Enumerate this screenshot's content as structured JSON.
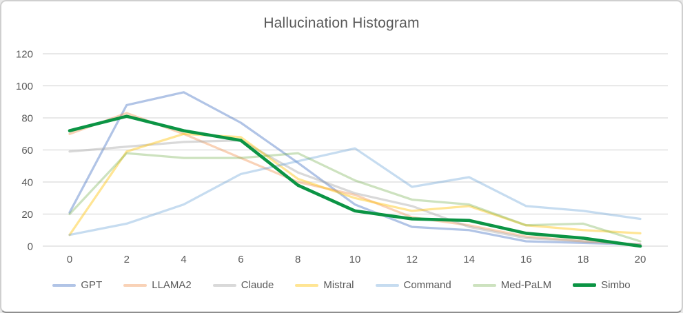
{
  "window": {
    "background": "#ffffff",
    "border_color": "#cfcfcf",
    "border_bottom_color": "#8f8f8f"
  },
  "chart_data": {
    "type": "line",
    "title": "Hallucination Histogram",
    "title_color": "#595959",
    "axis_text_color": "#595959",
    "gridline_color": "#d9d9d9",
    "grid": true,
    "legend_position": "bottom",
    "x": [
      0,
      2,
      4,
      6,
      8,
      10,
      12,
      14,
      16,
      18,
      20
    ],
    "xlabel": "",
    "ylabel": "",
    "ylim": [
      0,
      120
    ],
    "ytick_step": 20,
    "series": [
      {
        "name": "GPT",
        "color": "#4472C4",
        "opacity": 0.42,
        "width": 3.25,
        "values": [
          21,
          88,
          96,
          77,
          52,
          26,
          12,
          10,
          3,
          2,
          1
        ]
      },
      {
        "name": "LLAMA2",
        "color": "#ED7D31",
        "opacity": 0.35,
        "width": 3.25,
        "values": [
          70,
          83,
          70,
          55,
          40,
          32,
          18,
          13,
          6,
          3,
          1
        ]
      },
      {
        "name": "Claude",
        "color": "#A5A5A5",
        "opacity": 0.42,
        "width": 3.25,
        "values": [
          59,
          62,
          65,
          66,
          46,
          33,
          25,
          12,
          5,
          3,
          1
        ]
      },
      {
        "name": "Mistral",
        "color": "#FFC000",
        "opacity": 0.42,
        "width": 3.25,
        "values": [
          7,
          59,
          70,
          68,
          42,
          30,
          22,
          25,
          13,
          10,
          8
        ]
      },
      {
        "name": "Command",
        "color": "#5B9BD5",
        "opacity": 0.35,
        "width": 3.25,
        "values": [
          7,
          14,
          26,
          45,
          53,
          61,
          37,
          43,
          25,
          22,
          17
        ]
      },
      {
        "name": "Med-PaLM",
        "color": "#70AD47",
        "opacity": 0.35,
        "width": 3.25,
        "values": [
          20,
          58,
          55,
          55,
          58,
          41,
          29,
          26,
          13,
          14,
          3
        ]
      },
      {
        "name": "Simbo",
        "color": "#0B9444",
        "opacity": 1.0,
        "width": 4.6,
        "values": [
          72,
          81,
          72,
          66,
          38,
          22,
          17,
          16,
          8,
          5,
          0
        ]
      }
    ]
  }
}
